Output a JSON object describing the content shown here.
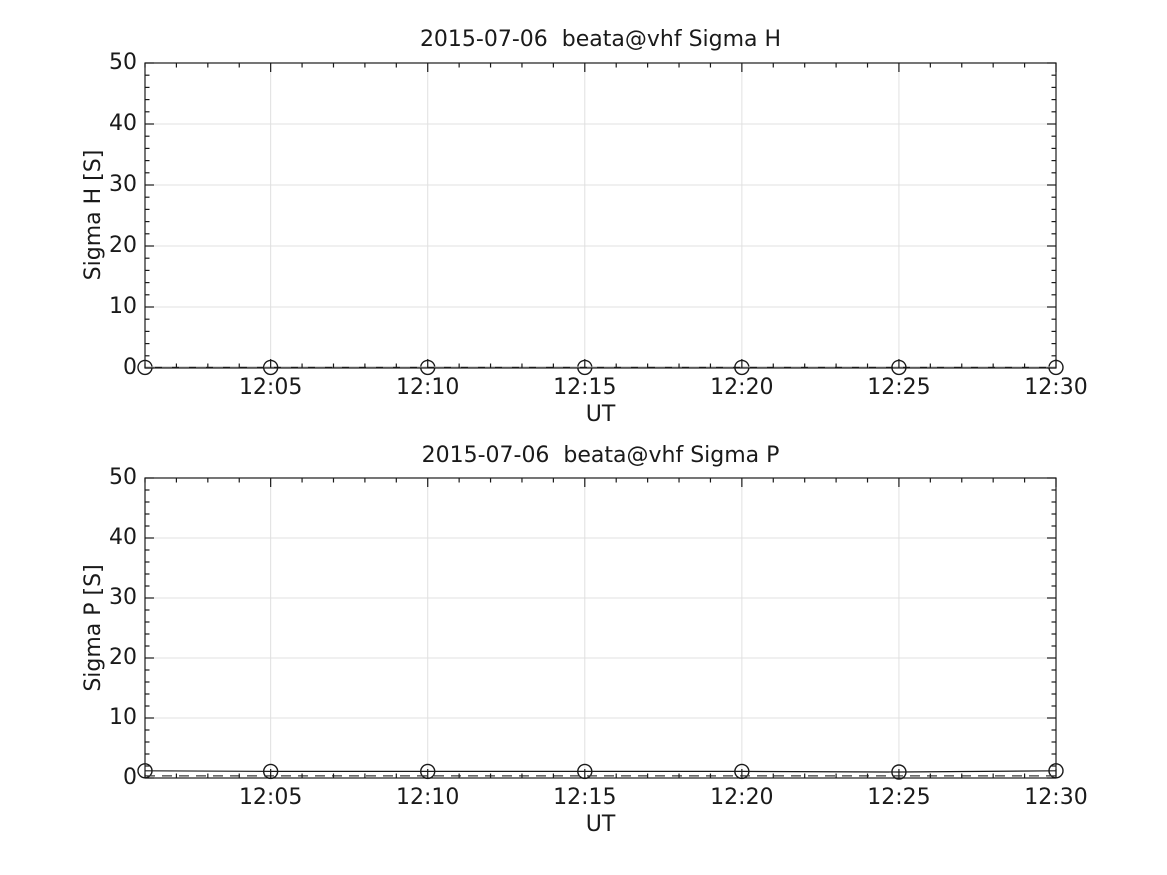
{
  "page": {
    "background": "#ffffff"
  },
  "colors": {
    "axis": "#1a1a1a",
    "grid": "#e0e0e0",
    "text": "#1a1a1a",
    "marker": "#1a1a1a",
    "solid_line": "#1a1a1a",
    "dashed_line_top": "#b4b4b4",
    "dashed_line_bottom": "#3a3a3a"
  },
  "chart_data": [
    {
      "type": "line",
      "title": "2015-07-06  beata@vhf Sigma H",
      "xlabel": "UT",
      "ylabel": "Sigma H [S]",
      "xlim": [
        "12:01",
        "12:30"
      ],
      "ylim": [
        0,
        50
      ],
      "yticks": [
        0,
        10,
        20,
        30,
        40,
        50
      ],
      "y_minor_step": 2,
      "xticks": [
        "12:05",
        "12:10",
        "12:15",
        "12:20",
        "12:25",
        "12:30"
      ],
      "x_minor_step_minutes": 1,
      "grid": true,
      "legend": "none",
      "series": [
        {
          "name": "sigma-h-markers-line",
          "style": "solid",
          "marker": "circle",
          "x": [
            "12:01",
            "12:05",
            "12:10",
            "12:15",
            "12:20",
            "12:25",
            "12:30"
          ],
          "y": [
            0.1,
            0.1,
            0.1,
            0.1,
            0.1,
            0.1,
            0.1
          ]
        },
        {
          "name": "sigma-h-dashed-line",
          "style": "dashed",
          "marker": "none",
          "y_const": 0.15,
          "color": "#b4b4b4"
        }
      ]
    },
    {
      "type": "line",
      "title": "2015-07-06  beata@vhf Sigma P",
      "xlabel": "UT",
      "ylabel": "Sigma P [S]",
      "xlim": [
        "12:01",
        "12:30"
      ],
      "ylim": [
        0,
        50
      ],
      "yticks": [
        0,
        10,
        20,
        30,
        40,
        50
      ],
      "y_minor_step": 2,
      "xticks": [
        "12:05",
        "12:10",
        "12:15",
        "12:20",
        "12:25",
        "12:30"
      ],
      "x_minor_step_minutes": 1,
      "grid": true,
      "legend": "none",
      "series": [
        {
          "name": "sigma-p-markers-line",
          "style": "solid",
          "marker": "circle",
          "x": [
            "12:01",
            "12:05",
            "12:10",
            "12:15",
            "12:20",
            "12:25",
            "12:30"
          ],
          "y": [
            1.2,
            1.1,
            1.1,
            1.1,
            1.1,
            1.0,
            1.2
          ]
        },
        {
          "name": "sigma-p-dashed-line",
          "style": "dashed",
          "marker": "none",
          "y_const": 0.35,
          "color": "#3a3a3a"
        }
      ]
    }
  ]
}
